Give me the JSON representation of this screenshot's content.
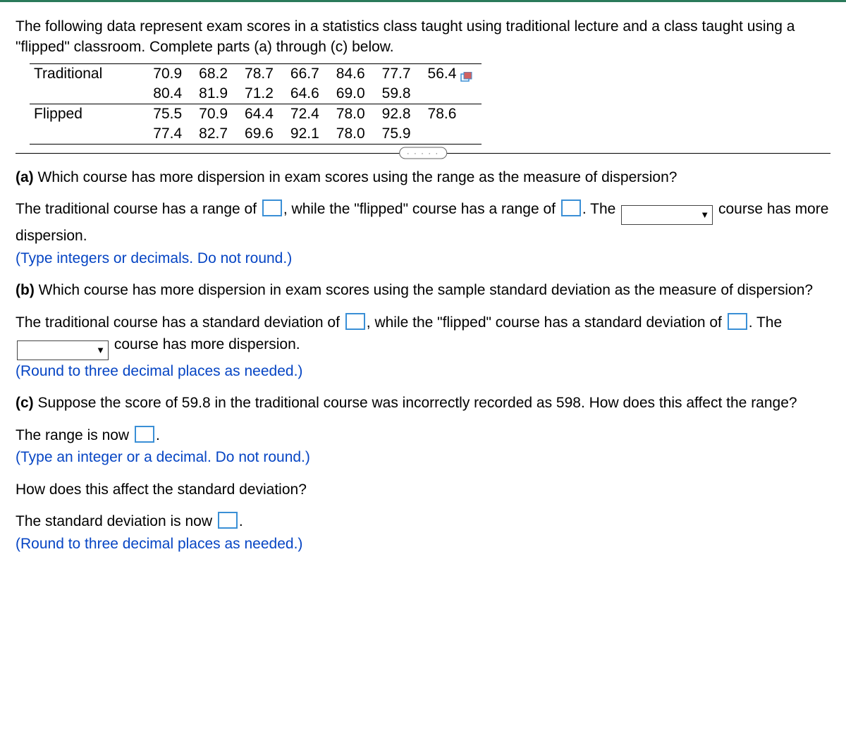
{
  "intro": "The following data represent exam scores in a statistics class taught using traditional lecture and a class taught using a \"flipped\" classroom. Complete parts (a) through (c) below.",
  "table": {
    "rows": [
      {
        "label": "Traditional",
        "values": [
          "70.9",
          "68.2",
          "78.7",
          "66.7",
          "84.6",
          "77.7",
          "56.4"
        ],
        "topBorder": true,
        "iconAfter": true
      },
      {
        "label": "",
        "values": [
          "80.4",
          "81.9",
          "71.2",
          "64.6",
          "69.0",
          "59.8",
          ""
        ],
        "bottomBorder": true
      },
      {
        "label": "Flipped",
        "values": [
          "75.5",
          "70.9",
          "64.4",
          "72.4",
          "78.0",
          "92.8",
          "78.6"
        ]
      },
      {
        "label": "",
        "values": [
          "77.4",
          "82.7",
          "69.6",
          "92.1",
          "78.0",
          "75.9",
          ""
        ],
        "bottomBorder": true
      }
    ],
    "label_fontsize": 21,
    "value_fontsize": 21,
    "border_color": "#000000"
  },
  "divider_dots": ". . . . .",
  "part_a": {
    "prompt_label": "(a)",
    "prompt": " Which course has more dispersion in exam scores using the range as the measure of dispersion?",
    "t1": "The traditional course has a range of ",
    "t2": ", while the \"flipped\" course has a range of ",
    "t3": ". The ",
    "t4": " course has more dispersion.",
    "hint": "(Type integers or decimals. Do not round.)"
  },
  "part_b": {
    "prompt_label": "(b)",
    "prompt": " Which course has more dispersion in exam scores using the sample standard deviation as the measure of dispersion?",
    "t1": "The traditional course has a standard deviation of ",
    "t2": ", while the \"flipped\" course has a standard deviation of ",
    "t3": ". The ",
    "t4": " course has more dispersion.",
    "hint": "(Round to three decimal places as needed.)"
  },
  "part_c": {
    "prompt_label": "(c)",
    "prompt": " Suppose the score of 59.8 in the traditional course was incorrectly recorded as 598. How does this affect the range?",
    "t1": "The range is now ",
    "t2": ".",
    "hint1": "(Type an integer or a decimal. Do not round.)",
    "q2": "How does this affect the standard deviation?",
    "t3": "The standard deviation is now ",
    "t4": ".",
    "hint2": "(Round to three decimal places as needed.)"
  },
  "colors": {
    "input_border": "#3a8fd6",
    "hint_text": "#0645c4",
    "top_rule": "#2a7a5a",
    "icon_fill": "#d06060",
    "icon_stroke": "#3a8fd6"
  }
}
